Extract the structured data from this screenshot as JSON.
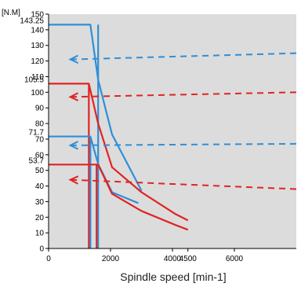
{
  "chart_data": {
    "type": "line",
    "title": "",
    "ylabel": "[N.M]",
    "xlabel": "Spindle speed [min-1]",
    "xlim": [
      0,
      8000
    ],
    "ylim": [
      0,
      150
    ],
    "x_ticks": [
      0,
      2000,
      4000,
      4500,
      6000
    ],
    "y_ticks": [
      0,
      10,
      20,
      30,
      40,
      50,
      60,
      70,
      80,
      90,
      100,
      110,
      120,
      130,
      140,
      150
    ],
    "y_special_ticks": [
      {
        "value": 143.25,
        "label": "143.25"
      },
      {
        "value": 105.5,
        "label": "105.5"
      },
      {
        "value": 71.7,
        "label": "71.7"
      },
      {
        "value": 53.7,
        "label": "53.7"
      }
    ],
    "grid": false,
    "background": "#dcdcdc",
    "series": [
      {
        "color": "#2f8fd6",
        "style": "solid",
        "x": [
          0,
          1350,
          1600,
          2050,
          3000
        ],
        "y": [
          143.25,
          143.25,
          108,
          73,
          37
        ],
        "drop_x": 1600
      },
      {
        "color": "#e02424",
        "style": "solid",
        "x": [
          0,
          1300,
          1600,
          2050,
          3000,
          4100,
          4500
        ],
        "y": [
          105.5,
          105.5,
          80,
          52,
          36,
          22,
          18
        ],
        "drop_x": 1300
      },
      {
        "color": "#2f8fd6",
        "style": "solid",
        "x": [
          0,
          1350,
          1600,
          2050,
          2900
        ],
        "y": [
          71.7,
          71.7,
          54,
          36,
          29
        ],
        "drop_x": 1350
      },
      {
        "color": "#e02424",
        "style": "solid",
        "x": [
          0,
          1600,
          2050,
          3000,
          4100,
          4500
        ],
        "y": [
          53.7,
          53.7,
          35,
          24,
          15,
          12
        ],
        "drop_x": 1550
      }
    ],
    "arrows": [
      {
        "color": "#2f8fd6",
        "style": "dashed",
        "x_from": 8000,
        "y_from": 125,
        "x_to": 700,
        "y_to": 121
      },
      {
        "color": "#e02424",
        "style": "dashed",
        "x_from": 8000,
        "y_from": 100,
        "x_to": 700,
        "y_to": 97
      },
      {
        "color": "#2f8fd6",
        "style": "dashed",
        "x_from": 8000,
        "y_from": 67,
        "x_to": 700,
        "y_to": 66
      },
      {
        "color": "#e02424",
        "style": "dashed",
        "x_from": 8000,
        "y_from": 38,
        "x_to": 700,
        "y_to": 44
      }
    ]
  }
}
